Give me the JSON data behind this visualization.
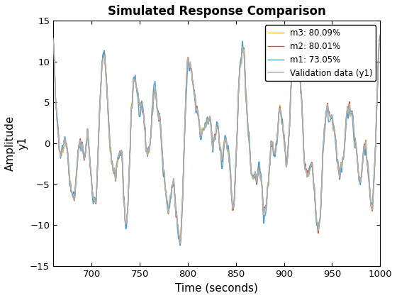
{
  "title": "Simulated Response Comparison",
  "xlabel": "Time (seconds)",
  "ylabel": "Amplitude\ny1",
  "xlim": [
    660,
    1000
  ],
  "ylim": [
    -15,
    15
  ],
  "yticks": [
    -15,
    -10,
    -5,
    0,
    5,
    10,
    15
  ],
  "xticks": [
    700,
    750,
    800,
    850,
    900,
    950,
    1000
  ],
  "legend_labels": [
    "Validation data (y1)",
    "m1: 73.05%",
    "m2: 80.01%",
    "m3: 80.09%"
  ],
  "colors": {
    "validation": "#b0b0b0",
    "m1": "#4E9ECC",
    "m2": "#CC5533",
    "m3": "#E8B830"
  },
  "linewidths": {
    "validation": 1.1,
    "m1": 1.0,
    "m2": 1.0,
    "m3": 1.0
  },
  "t_start": 660,
  "t_end": 1000,
  "n_points": 2000,
  "fig_width": 5.6,
  "fig_height": 4.2,
  "dpi": 100
}
